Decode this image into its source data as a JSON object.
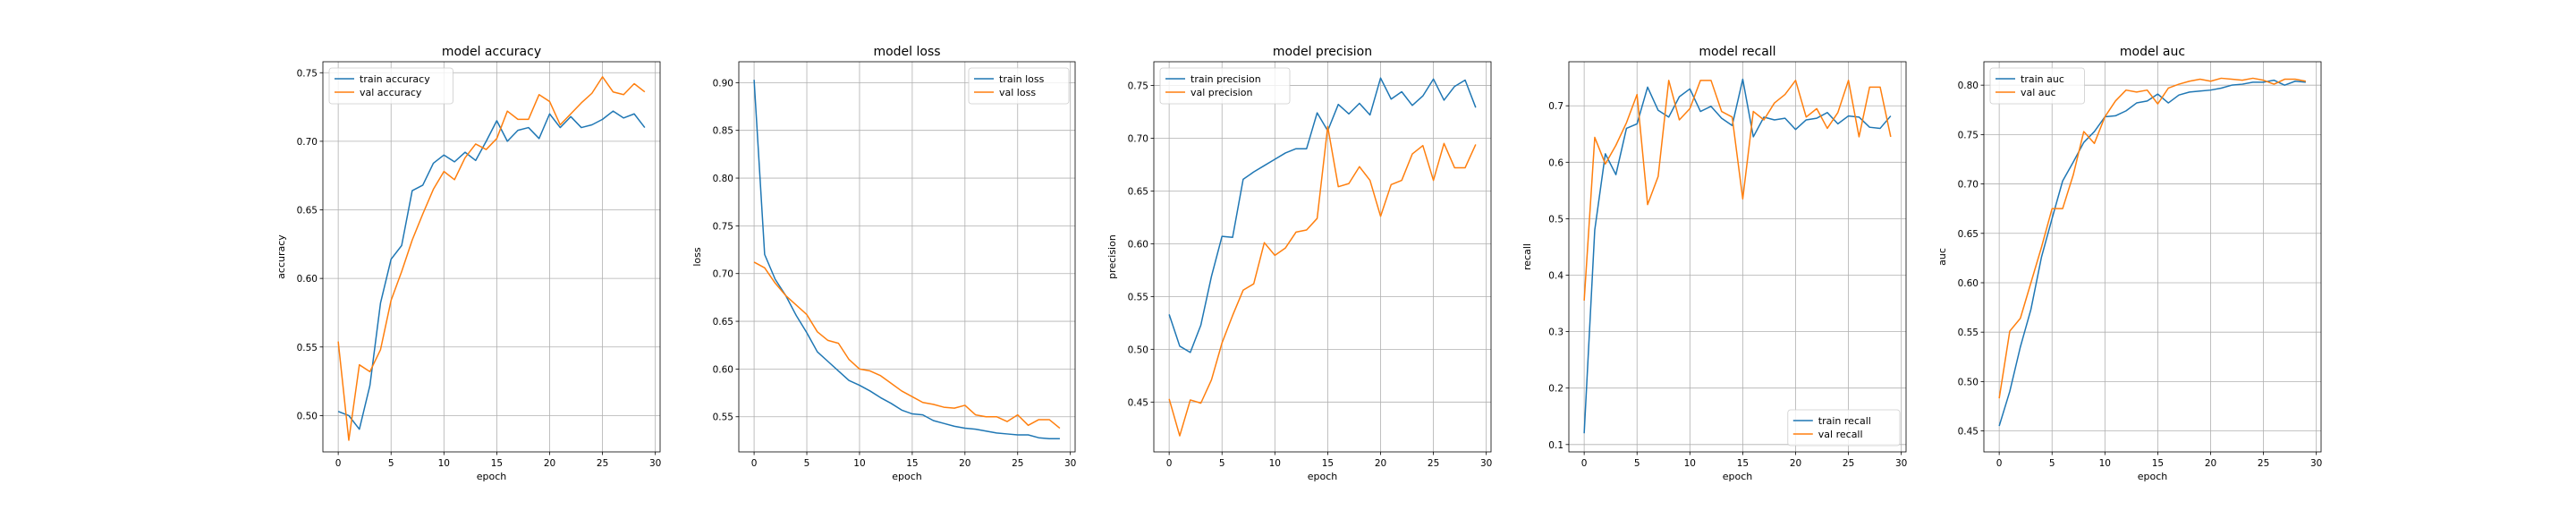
{
  "colors": {
    "train": "#1f77b4",
    "val": "#ff7f0e",
    "grid": "#b0b0b0",
    "axis": "#000000"
  },
  "chart_data": [
    {
      "type": "line",
      "title": "model accuracy",
      "xlabel": "epoch",
      "ylabel": "accuracy",
      "xlim": [
        -1.45,
        30.45
      ],
      "ylim": [
        0.4735,
        0.758
      ],
      "xticks": [
        0,
        5,
        10,
        15,
        20,
        25,
        30
      ],
      "yticks": [
        0.5,
        0.55,
        0.6,
        0.65,
        0.7,
        0.75
      ],
      "ytick_labels": [
        "0.50",
        "0.55",
        "0.60",
        "0.65",
        "0.70",
        "0.75"
      ],
      "grid": true,
      "legend_loc": "upper left",
      "x": [
        0,
        1,
        2,
        3,
        4,
        5,
        6,
        7,
        8,
        9,
        10,
        11,
        12,
        13,
        14,
        15,
        16,
        17,
        18,
        19,
        20,
        21,
        22,
        23,
        24,
        25,
        26,
        27,
        28,
        29
      ],
      "series": [
        {
          "name": "train accuracy",
          "color": "train",
          "values": [
            0.503,
            0.5,
            0.49,
            0.522,
            0.582,
            0.614,
            0.624,
            0.664,
            0.668,
            0.684,
            0.69,
            0.685,
            0.692,
            0.686,
            0.7,
            0.715,
            0.7,
            0.708,
            0.71,
            0.702,
            0.72,
            0.71,
            0.718,
            0.71,
            0.712,
            0.716,
            0.722,
            0.717,
            0.72,
            0.71
          ]
        },
        {
          "name": "val accuracy",
          "color": "val",
          "values": [
            0.554,
            0.482,
            0.537,
            0.532,
            0.548,
            0.584,
            0.605,
            0.628,
            0.647,
            0.665,
            0.678,
            0.672,
            0.688,
            0.698,
            0.694,
            0.702,
            0.722,
            0.716,
            0.716,
            0.734,
            0.729,
            0.712,
            0.72,
            0.728,
            0.735,
            0.747,
            0.736,
            0.734,
            0.742,
            0.736
          ]
        }
      ]
    },
    {
      "type": "line",
      "title": "model loss",
      "xlabel": "epoch",
      "ylabel": "loss",
      "xlim": [
        -1.45,
        30.45
      ],
      "ylim": [
        0.5132,
        0.9219
      ],
      "xticks": [
        0,
        5,
        10,
        15,
        20,
        25,
        30
      ],
      "yticks": [
        0.55,
        0.6,
        0.65,
        0.7,
        0.75,
        0.8,
        0.85,
        0.9
      ],
      "ytick_labels": [
        "0.55",
        "0.60",
        "0.65",
        "0.70",
        "0.75",
        "0.80",
        "0.85",
        "0.90"
      ],
      "grid": true,
      "legend_loc": "upper right",
      "x": [
        0,
        1,
        2,
        3,
        4,
        5,
        6,
        7,
        8,
        9,
        10,
        11,
        12,
        13,
        14,
        15,
        16,
        17,
        18,
        19,
        20,
        21,
        22,
        23,
        24,
        25,
        26,
        27,
        28,
        29
      ],
      "series": [
        {
          "name": "train loss",
          "color": "train",
          "values": [
            0.903,
            0.72,
            0.694,
            0.677,
            0.656,
            0.638,
            0.618,
            0.608,
            0.598,
            0.588,
            0.583,
            0.577,
            0.57,
            0.564,
            0.557,
            0.553,
            0.552,
            0.546,
            0.543,
            0.54,
            0.538,
            0.537,
            0.535,
            0.533,
            0.532,
            0.531,
            0.531,
            0.528,
            0.527,
            0.527
          ]
        },
        {
          "name": "val loss",
          "color": "val",
          "values": [
            0.712,
            0.706,
            0.69,
            0.677,
            0.667,
            0.657,
            0.639,
            0.63,
            0.627,
            0.61,
            0.6,
            0.598,
            0.593,
            0.585,
            0.577,
            0.571,
            0.565,
            0.563,
            0.56,
            0.559,
            0.562,
            0.552,
            0.55,
            0.55,
            0.545,
            0.552,
            0.541,
            0.547,
            0.547,
            0.538
          ]
        }
      ]
    },
    {
      "type": "line",
      "title": "model precision",
      "xlabel": "epoch",
      "ylabel": "precision",
      "xlim": [
        -1.45,
        30.45
      ],
      "ylim": [
        0.4028,
        0.7724
      ],
      "xticks": [
        0,
        5,
        10,
        15,
        20,
        25,
        30
      ],
      "yticks": [
        0.45,
        0.5,
        0.55,
        0.6,
        0.65,
        0.7,
        0.75
      ],
      "ytick_labels": [
        "0.45",
        "0.50",
        "0.55",
        "0.60",
        "0.65",
        "0.70",
        "0.75"
      ],
      "grid": true,
      "legend_loc": "upper left",
      "x": [
        0,
        1,
        2,
        3,
        4,
        5,
        6,
        7,
        8,
        9,
        10,
        11,
        12,
        13,
        14,
        15,
        16,
        17,
        18,
        19,
        20,
        21,
        22,
        23,
        24,
        25,
        26,
        27,
        28,
        29
      ],
      "series": [
        {
          "name": "train precision",
          "color": "train",
          "values": [
            0.533,
            0.503,
            0.497,
            0.523,
            0.569,
            0.607,
            0.606,
            0.661,
            0.668,
            0.674,
            0.68,
            0.686,
            0.69,
            0.69,
            0.724,
            0.707,
            0.732,
            0.723,
            0.733,
            0.722,
            0.757,
            0.737,
            0.744,
            0.731,
            0.74,
            0.756,
            0.736,
            0.749,
            0.755,
            0.729
          ]
        },
        {
          "name": "val precision",
          "color": "val",
          "values": [
            0.453,
            0.418,
            0.452,
            0.449,
            0.471,
            0.506,
            0.532,
            0.556,
            0.562,
            0.601,
            0.589,
            0.596,
            0.611,
            0.613,
            0.624,
            0.711,
            0.654,
            0.657,
            0.673,
            0.66,
            0.626,
            0.656,
            0.66,
            0.685,
            0.693,
            0.66,
            0.695,
            0.672,
            0.672,
            0.694
          ]
        }
      ]
    },
    {
      "type": "line",
      "title": "model recall",
      "xlabel": "epoch",
      "ylabel": "recall",
      "xlim": [
        -1.45,
        30.45
      ],
      "ylim": [
        0.087,
        0.778
      ],
      "xticks": [
        0,
        5,
        10,
        15,
        20,
        25,
        30
      ],
      "yticks": [
        0.1,
        0.2,
        0.3,
        0.4,
        0.5,
        0.6,
        0.7
      ],
      "ytick_labels": [
        "0.1",
        "0.2",
        "0.3",
        "0.4",
        "0.5",
        "0.6",
        "0.7"
      ],
      "grid": true,
      "legend_loc": "lower right",
      "x": [
        0,
        1,
        2,
        3,
        4,
        5,
        6,
        7,
        8,
        9,
        10,
        11,
        12,
        13,
        14,
        15,
        16,
        17,
        18,
        19,
        20,
        21,
        22,
        23,
        24,
        25,
        26,
        27,
        28,
        29
      ],
      "series": [
        {
          "name": "train recall",
          "color": "train",
          "values": [
            0.12,
            0.48,
            0.615,
            0.578,
            0.66,
            0.668,
            0.733,
            0.692,
            0.68,
            0.716,
            0.73,
            0.69,
            0.699,
            0.678,
            0.665,
            0.747,
            0.645,
            0.68,
            0.675,
            0.678,
            0.658,
            0.675,
            0.678,
            0.688,
            0.668,
            0.682,
            0.68,
            0.662,
            0.66,
            0.682
          ]
        },
        {
          "name": "val recall",
          "color": "val",
          "values": [
            0.355,
            0.644,
            0.597,
            0.63,
            0.67,
            0.72,
            0.525,
            0.575,
            0.745,
            0.675,
            0.695,
            0.745,
            0.745,
            0.69,
            0.68,
            0.535,
            0.69,
            0.675,
            0.705,
            0.72,
            0.745,
            0.68,
            0.695,
            0.66,
            0.688,
            0.745,
            0.645,
            0.733,
            0.733,
            0.645
          ]
        }
      ]
    },
    {
      "type": "line",
      "title": "model auc",
      "xlabel": "epoch",
      "ylabel": "auc",
      "xlim": [
        -1.45,
        30.45
      ],
      "ylim": [
        0.4288,
        0.8237
      ],
      "xticks": [
        0,
        5,
        10,
        15,
        20,
        25,
        30
      ],
      "yticks": [
        0.45,
        0.5,
        0.55,
        0.6,
        0.65,
        0.7,
        0.75,
        0.8
      ],
      "ytick_labels": [
        "0.45",
        "0.50",
        "0.55",
        "0.60",
        "0.65",
        "0.70",
        "0.75",
        "0.80"
      ],
      "grid": true,
      "legend_loc": "upper left",
      "x": [
        0,
        1,
        2,
        3,
        4,
        5,
        6,
        7,
        8,
        9,
        10,
        11,
        12,
        13,
        14,
        15,
        16,
        17,
        18,
        19,
        20,
        21,
        22,
        23,
        24,
        25,
        26,
        27,
        28,
        29
      ],
      "series": [
        {
          "name": "train auc",
          "color": "train",
          "values": [
            0.455,
            0.49,
            0.535,
            0.573,
            0.626,
            0.665,
            0.703,
            0.722,
            0.742,
            0.753,
            0.768,
            0.769,
            0.774,
            0.782,
            0.784,
            0.791,
            0.782,
            0.79,
            0.793,
            0.794,
            0.795,
            0.797,
            0.8,
            0.801,
            0.803,
            0.803,
            0.805,
            0.8,
            0.804,
            0.803
          ]
        },
        {
          "name": "val auc",
          "color": "val",
          "values": [
            0.483,
            0.551,
            0.564,
            0.6,
            0.636,
            0.675,
            0.675,
            0.709,
            0.753,
            0.741,
            0.768,
            0.784,
            0.795,
            0.793,
            0.795,
            0.781,
            0.797,
            0.801,
            0.804,
            0.806,
            0.804,
            0.807,
            0.806,
            0.805,
            0.807,
            0.805,
            0.801,
            0.806,
            0.806,
            0.804
          ]
        }
      ]
    }
  ]
}
